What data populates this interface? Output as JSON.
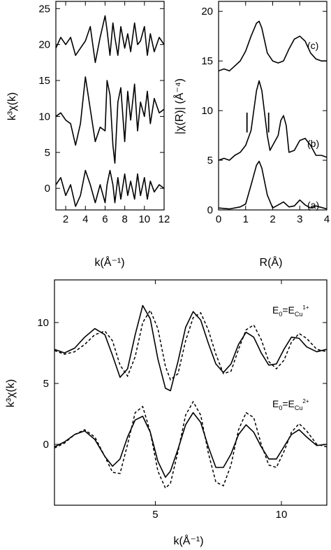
{
  "chart_data": [
    {
      "type": "line",
      "panel": "top-left",
      "xlabel": "k(Å⁻¹)",
      "ylabel": "k³χ(k)",
      "xlim": [
        1,
        12
      ],
      "ylim": [
        -3,
        26
      ],
      "xticks": [
        2,
        4,
        6,
        8,
        10,
        12
      ],
      "xtick_labels": [
        "2",
        "4",
        "6",
        "8",
        "10",
        "12"
      ],
      "yticks": [
        0,
        5,
        10,
        15,
        20,
        25
      ],
      "ytick_labels": [
        "0",
        "5",
        "10",
        "15",
        "20",
        "25"
      ],
      "series": [
        {
          "x": [
            1.0,
            1.5,
            2.0,
            2.5,
            3.0,
            3.5,
            4.0,
            4.5,
            5.0,
            5.5,
            6.0,
            6.2,
            6.5,
            6.8,
            7.0,
            7.3,
            7.6,
            8.0,
            8.3,
            8.6,
            9.0,
            9.3,
            9.6,
            10.0,
            10.3,
            10.6,
            11.0,
            11.5,
            12.0
          ],
          "y": [
            0.5,
            1.5,
            -1.0,
            0.5,
            -2.5,
            -1.0,
            2.5,
            0.5,
            -2.0,
            0.5,
            -2.0,
            0.5,
            2.5,
            0.5,
            -2.0,
            1.5,
            -1.5,
            2.0,
            -1.0,
            1.0,
            -1.5,
            2.0,
            -1.0,
            1.5,
            -1.5,
            1.0,
            -0.5,
            0.5,
            0.0
          ]
        },
        {
          "x": [
            1.0,
            1.5,
            2.0,
            2.5,
            3.0,
            3.5,
            4.0,
            4.5,
            5.0,
            5.5,
            6.0,
            6.2,
            6.5,
            6.8,
            7.0,
            7.3,
            7.6,
            8.0,
            8.3,
            8.6,
            9.0,
            9.3,
            9.6,
            10.0,
            10.3,
            10.6,
            11.0,
            11.5,
            12.0
          ],
          "y": [
            10.0,
            10.5,
            9.5,
            9.0,
            6.0,
            9.0,
            15.5,
            11.0,
            6.5,
            8.5,
            8.0,
            15.0,
            13.0,
            6.0,
            3.5,
            12.0,
            14.0,
            6.5,
            13.5,
            9.5,
            14.5,
            8.0,
            12.0,
            10.0,
            13.5,
            9.0,
            12.5,
            10.5,
            11.0
          ]
        },
        {
          "x": [
            1.0,
            1.5,
            2.0,
            2.5,
            3.0,
            3.5,
            4.0,
            4.5,
            5.0,
            5.5,
            6.0,
            6.2,
            6.5,
            6.8,
            7.0,
            7.3,
            7.6,
            8.0,
            8.3,
            8.6,
            9.0,
            9.3,
            9.6,
            10.0,
            10.3,
            10.6,
            11.0,
            11.5,
            12.0
          ],
          "y": [
            19.5,
            21.0,
            20.0,
            21.0,
            18.5,
            19.5,
            20.5,
            22.5,
            17.5,
            21.0,
            24.0,
            22.0,
            18.5,
            23.0,
            21.0,
            18.5,
            22.5,
            19.5,
            21.5,
            19.0,
            23.0,
            20.0,
            20.5,
            22.5,
            18.5,
            21.5,
            19.0,
            21.0,
            20.0
          ]
        }
      ]
    },
    {
      "type": "line",
      "panel": "top-right",
      "xlabel": "R(Å)",
      "ylabel": "|χ(R)| (Å⁻⁴)",
      "xlim": [
        0,
        4
      ],
      "ylim": [
        0,
        21
      ],
      "xticks": [
        0,
        1,
        2,
        3,
        4
      ],
      "xtick_labels": [
        "0",
        "1",
        "2",
        "3",
        "4"
      ],
      "yticks": [
        0,
        5,
        10,
        15,
        20
      ],
      "ytick_labels": [
        "0",
        "5",
        "10",
        "15",
        "20"
      ],
      "annotations": [
        "(a)",
        "(b)",
        "(c)"
      ],
      "vertical_markers": [
        {
          "x": 1.05,
          "y0": 7.8,
          "y1": 9.8
        },
        {
          "x": 1.85,
          "y0": 7.8,
          "y1": 9.8
        }
      ],
      "series": [
        {
          "name": "(a)",
          "x": [
            0.0,
            0.4,
            0.8,
            1.0,
            1.2,
            1.4,
            1.5,
            1.6,
            1.8,
            2.0,
            2.2,
            2.4,
            2.6,
            2.8,
            3.0,
            3.2,
            3.4,
            3.6,
            4.0
          ],
          "y": [
            0.2,
            0.1,
            0.3,
            0.6,
            2.5,
            4.5,
            4.9,
            4.2,
            1.5,
            0.2,
            0.5,
            0.8,
            0.3,
            0.4,
            1.0,
            0.5,
            0.2,
            0.4,
            0.1
          ]
        },
        {
          "name": "(b)",
          "x": [
            0.0,
            0.2,
            0.4,
            0.6,
            0.8,
            1.0,
            1.2,
            1.4,
            1.5,
            1.6,
            1.8,
            1.9,
            2.0,
            2.2,
            2.3,
            2.4,
            2.5,
            2.6,
            2.8,
            3.0,
            3.2,
            3.4,
            3.6,
            3.8,
            4.0
          ],
          "y": [
            5.0,
            5.2,
            5.0,
            5.5,
            5.8,
            6.5,
            8.0,
            12.0,
            13.0,
            12.0,
            7.5,
            6.0,
            6.5,
            7.5,
            9.0,
            9.5,
            8.5,
            5.8,
            6.0,
            7.0,
            7.2,
            6.5,
            5.5,
            5.5,
            5.3
          ]
        },
        {
          "name": "(c)",
          "x": [
            0.0,
            0.2,
            0.4,
            0.6,
            0.8,
            1.0,
            1.2,
            1.4,
            1.5,
            1.6,
            1.8,
            2.0,
            2.2,
            2.4,
            2.6,
            2.8,
            3.0,
            3.2,
            3.4,
            3.6,
            3.8,
            4.0
          ],
          "y": [
            14.0,
            14.2,
            14.0,
            14.5,
            15.0,
            16.0,
            17.5,
            18.8,
            19.0,
            18.3,
            15.8,
            15.0,
            14.8,
            15.0,
            16.2,
            17.2,
            17.5,
            17.0,
            15.8,
            15.2,
            15.0,
            15.0
          ]
        }
      ]
    },
    {
      "type": "line",
      "panel": "bottom",
      "xlabel": "k(Å⁻¹)",
      "ylabel": "k³χ(k)",
      "xlim": [
        1,
        11.8
      ],
      "ylim": [
        -5,
        13.5
      ],
      "xticks": [
        5,
        10
      ],
      "xtick_labels": [
        "5",
        "10"
      ],
      "yticks": [
        0,
        5,
        10
      ],
      "ytick_labels": [
        "0",
        "5",
        "10"
      ],
      "annotations": [
        {
          "base": "E",
          "sub": "0",
          "eq": "=E",
          "sub2": "Cu",
          "sup2": "1+"
        },
        {
          "base": "E",
          "sub": "0",
          "eq": "=E",
          "sub2": "Cu",
          "sup2": "2+"
        }
      ],
      "series": [
        {
          "style": "solid",
          "x": [
            1.0,
            1.4,
            1.8,
            2.2,
            2.6,
            3.0,
            3.3,
            3.6,
            3.9,
            4.2,
            4.5,
            4.8,
            5.1,
            5.4,
            5.6,
            5.9,
            6.2,
            6.5,
            6.8,
            7.1,
            7.4,
            7.7,
            8.0,
            8.3,
            8.6,
            8.9,
            9.2,
            9.5,
            9.8,
            10.1,
            10.4,
            10.7,
            11.0,
            11.4,
            11.8
          ],
          "y": [
            7.8,
            7.5,
            7.9,
            8.8,
            9.5,
            9.0,
            7.3,
            5.5,
            6.2,
            9.0,
            11.4,
            10.3,
            7.0,
            4.6,
            4.4,
            6.8,
            9.6,
            10.9,
            10.2,
            8.3,
            6.6,
            5.9,
            6.6,
            8.2,
            9.2,
            8.8,
            7.5,
            6.5,
            6.6,
            7.8,
            8.8,
            8.7,
            8.0,
            7.6,
            7.8
          ]
        },
        {
          "style": "dashed",
          "x": [
            1.0,
            1.4,
            1.8,
            2.2,
            2.6,
            3.0,
            3.3,
            3.6,
            3.9,
            4.2,
            4.5,
            4.8,
            5.1,
            5.4,
            5.6,
            5.9,
            6.2,
            6.5,
            6.8,
            7.1,
            7.4,
            7.7,
            8.0,
            8.3,
            8.6,
            8.9,
            9.2,
            9.5,
            9.8,
            10.1,
            10.4,
            10.7,
            11.0,
            11.4,
            11.8
          ],
          "y": [
            7.7,
            7.4,
            7.6,
            8.2,
            9.0,
            9.3,
            8.5,
            6.5,
            5.6,
            7.2,
            10.0,
            11.0,
            9.5,
            6.4,
            5.3,
            5.8,
            8.5,
            10.4,
            10.8,
            9.4,
            7.4,
            5.8,
            6.0,
            7.8,
            9.4,
            9.8,
            8.6,
            6.8,
            6.2,
            6.9,
            8.4,
            9.1,
            8.7,
            7.8,
            7.6
          ]
        },
        {
          "style": "solid",
          "x": [
            1.0,
            1.4,
            1.8,
            2.2,
            2.6,
            3.0,
            3.3,
            3.6,
            3.9,
            4.2,
            4.5,
            4.8,
            5.1,
            5.4,
            5.6,
            5.9,
            6.2,
            6.5,
            6.8,
            7.1,
            7.4,
            7.7,
            8.0,
            8.3,
            8.6,
            8.9,
            9.2,
            9.5,
            9.8,
            10.1,
            10.4,
            10.7,
            11.0,
            11.4,
            11.8
          ],
          "y": [
            -0.2,
            0.2,
            0.8,
            1.1,
            0.4,
            -1.0,
            -1.8,
            -1.2,
            0.6,
            2.0,
            2.3,
            1.0,
            -1.4,
            -2.7,
            -2.2,
            -0.4,
            1.6,
            2.6,
            1.8,
            -0.2,
            -1.9,
            -1.9,
            -0.8,
            0.8,
            1.6,
            1.0,
            -0.2,
            -1.2,
            -1.2,
            -0.2,
            0.8,
            1.2,
            0.6,
            -0.1,
            0.0
          ]
        },
        {
          "style": "dashed",
          "x": [
            1.0,
            1.4,
            1.8,
            2.2,
            2.6,
            3.0,
            3.3,
            3.6,
            3.9,
            4.2,
            4.5,
            4.8,
            5.1,
            5.4,
            5.6,
            5.9,
            6.2,
            6.5,
            6.8,
            7.1,
            7.4,
            7.7,
            8.0,
            8.3,
            8.6,
            8.9,
            9.2,
            9.5,
            9.8,
            10.1,
            10.4,
            10.7,
            11.0,
            11.4,
            11.8
          ],
          "y": [
            -0.3,
            0.1,
            0.8,
            1.2,
            0.6,
            -1.0,
            -2.3,
            -2.4,
            0.0,
            2.6,
            3.1,
            1.0,
            -2.2,
            -3.6,
            -3.2,
            -0.6,
            2.4,
            3.5,
            2.4,
            -0.7,
            -3.1,
            -3.4,
            -1.7,
            1.2,
            2.6,
            2.2,
            0.0,
            -1.7,
            -1.9,
            -0.6,
            1.0,
            1.7,
            1.1,
            0.0,
            -0.2
          ]
        }
      ]
    }
  ]
}
